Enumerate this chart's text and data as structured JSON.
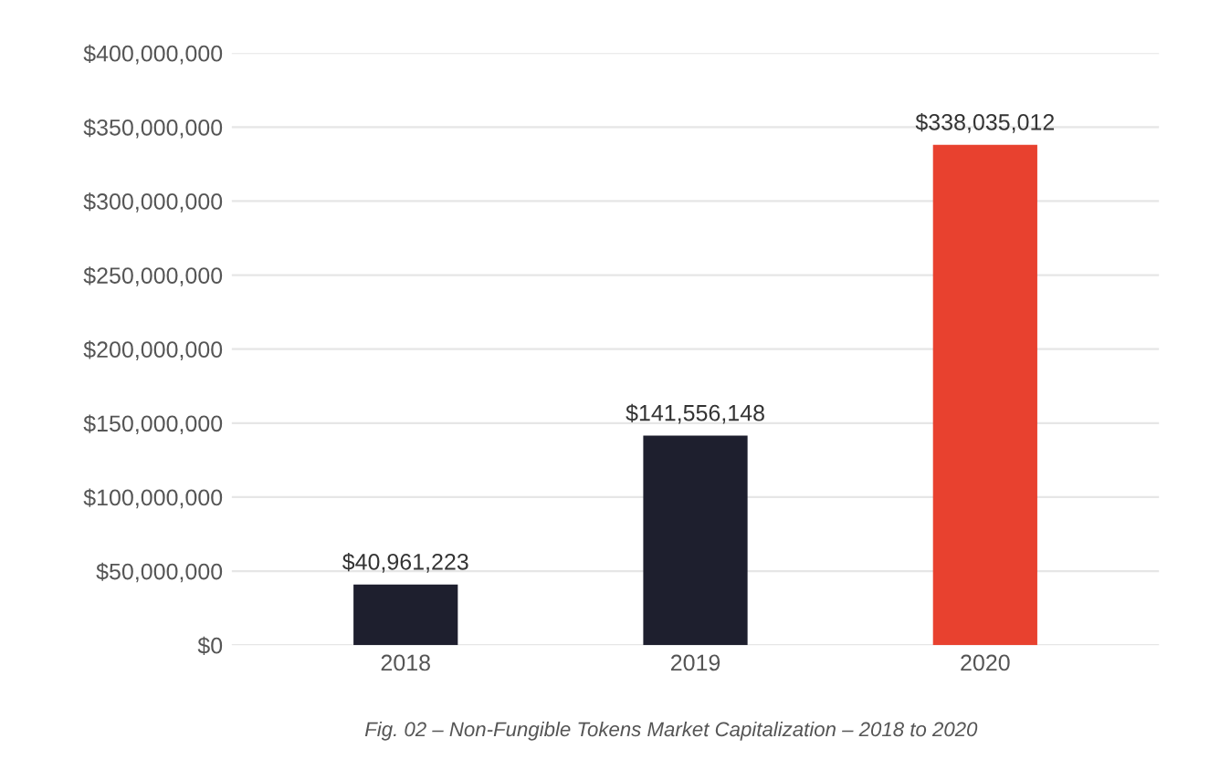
{
  "chart_data": {
    "type": "bar",
    "categories": [
      "2018",
      "2019",
      "2020"
    ],
    "values": [
      40961223,
      141556148,
      338035012
    ],
    "colors": [
      "#1e1f2e",
      "#1e1f2e",
      "#e8412f"
    ],
    "value_labels": [
      "$40,961,223",
      "$141,556,148",
      "$338,035,012"
    ],
    "ylim": [
      0,
      400000000
    ],
    "yticks": [
      {
        "value": 0,
        "label": "$0"
      },
      {
        "value": 50000000,
        "label": "$50,000,000"
      },
      {
        "value": 100000000,
        "label": "$100,000,000"
      },
      {
        "value": 150000000,
        "label": "$150,000,000"
      },
      {
        "value": 200000000,
        "label": "$200,000,000"
      },
      {
        "value": 250000000,
        "label": "$250,000,000"
      },
      {
        "value": 300000000,
        "label": "$300,000,000"
      },
      {
        "value": 350000000,
        "label": "$350,000,000"
      },
      {
        "value": 400000000,
        "label": "$400,000,000"
      }
    ],
    "grid": "y",
    "annotations": [
      "Fig. 02 – Non-Fungible Tokens Market Capitalization – 2018 to 2020"
    ]
  }
}
